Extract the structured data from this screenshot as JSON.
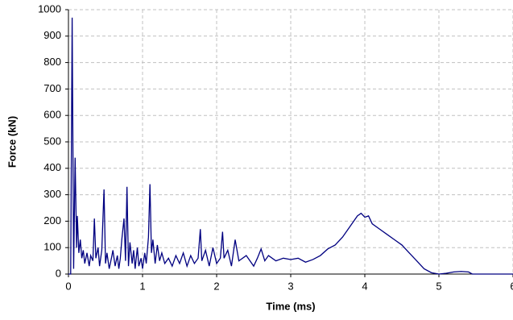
{
  "chart_data": {
    "type": "line",
    "x_label": "Time (ms)",
    "y_label": "Force (kN)",
    "xlim": [
      0,
      6
    ],
    "xticks": [
      0,
      1,
      2,
      3,
      4,
      5,
      6
    ],
    "ylim": [
      0,
      1000
    ],
    "yticks": [
      0,
      100,
      200,
      300,
      400,
      500,
      600,
      700,
      800,
      900,
      1000
    ],
    "grid": true,
    "series": [
      {
        "color": "#000080",
        "x": [
          0,
          0.03,
          0.05,
          0.07,
          0.09,
          0.11,
          0.12,
          0.14,
          0.16,
          0.18,
          0.2,
          0.22,
          0.25,
          0.28,
          0.3,
          0.33,
          0.35,
          0.37,
          0.4,
          0.42,
          0.45,
          0.48,
          0.5,
          0.52,
          0.55,
          0.58,
          0.6,
          0.63,
          0.66,
          0.68,
          0.7,
          0.72,
          0.75,
          0.77,
          0.79,
          0.81,
          0.83,
          0.86,
          0.88,
          0.9,
          0.93,
          0.95,
          0.98,
          1.0,
          1.03,
          1.05,
          1.08,
          1.1,
          1.12,
          1.14,
          1.17,
          1.2,
          1.23,
          1.26,
          1.3,
          1.35,
          1.4,
          1.45,
          1.5,
          1.55,
          1.6,
          1.65,
          1.7,
          1.75,
          1.78,
          1.8,
          1.85,
          1.9,
          1.95,
          2.0,
          2.05,
          2.08,
          2.1,
          2.15,
          2.2,
          2.25,
          2.3,
          2.4,
          2.5,
          2.55,
          2.6,
          2.65,
          2.7,
          2.8,
          2.9,
          3.0,
          3.1,
          3.2,
          3.3,
          3.4,
          3.5,
          3.6,
          3.7,
          3.8,
          3.9,
          3.95,
          4.0,
          4.05,
          4.1,
          4.2,
          4.3,
          4.4,
          4.5,
          4.6,
          4.7,
          4.8,
          4.9,
          5.0,
          5.1,
          5.2,
          5.3,
          5.4,
          5.45,
          5.5,
          6.0
        ],
        "values": [
          0,
          0,
          970,
          20,
          440,
          100,
          220,
          80,
          130,
          60,
          90,
          40,
          80,
          30,
          70,
          50,
          210,
          60,
          100,
          30,
          90,
          320,
          40,
          80,
          20,
          60,
          90,
          30,
          70,
          20,
          60,
          130,
          210,
          50,
          330,
          30,
          120,
          40,
          90,
          20,
          100,
          30,
          60,
          20,
          80,
          40,
          140,
          340,
          80,
          130,
          40,
          110,
          50,
          80,
          40,
          60,
          30,
          70,
          40,
          80,
          30,
          70,
          40,
          60,
          170,
          50,
          90,
          30,
          100,
          40,
          60,
          160,
          60,
          90,
          30,
          130,
          50,
          70,
          30,
          60,
          95,
          50,
          70,
          50,
          60,
          55,
          60,
          45,
          55,
          70,
          95,
          110,
          140,
          180,
          220,
          230,
          215,
          220,
          190,
          170,
          150,
          130,
          110,
          80,
          50,
          20,
          5,
          0,
          3,
          8,
          10,
          8,
          0,
          0,
          0
        ]
      }
    ]
  }
}
